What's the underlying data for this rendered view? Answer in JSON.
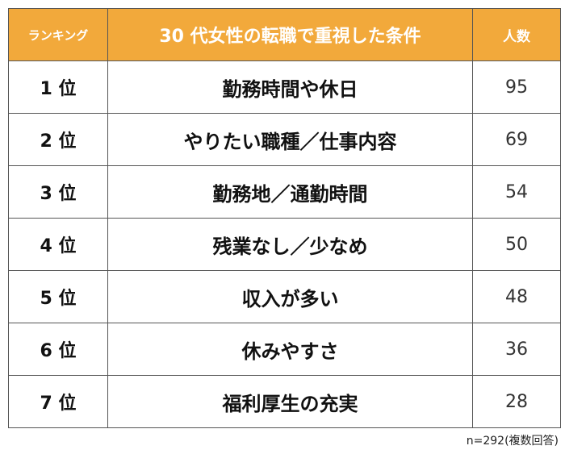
{
  "table": {
    "header": [
      "ランキング",
      "30 代女性の転職で重視した条件",
      "人数"
    ],
    "rows": [
      [
        "1 位",
        "勤務時間や休日",
        95
      ],
      [
        "2 位",
        "やりたい職種／仕事内容",
        69
      ],
      [
        "3 位",
        "勤務地／通勤時間",
        54
      ],
      [
        "4 位",
        "残業なし／少なめ",
        50
      ],
      [
        "5 位",
        "収入が多い",
        48
      ],
      [
        "6 位",
        "休みやすさ",
        36
      ],
      [
        "7 位",
        "福利厚生の充実",
        28
      ]
    ]
  },
  "footnote": "n=292(複数回答)"
}
